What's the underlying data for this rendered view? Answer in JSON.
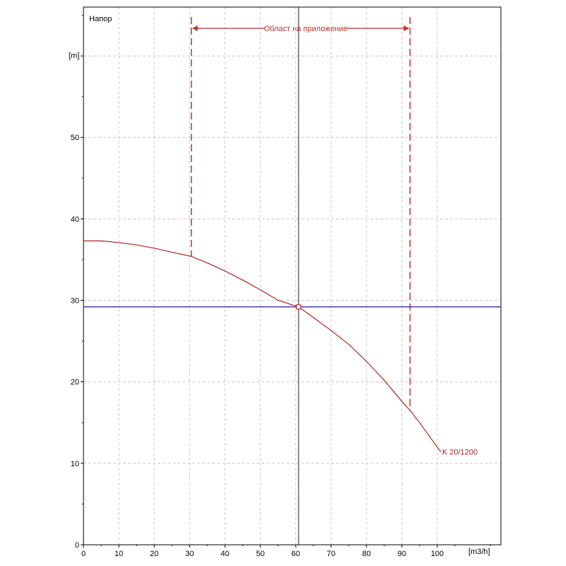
{
  "chart_data": {
    "type": "line",
    "title": "Напор",
    "ylabel": "[m]",
    "xlabel": "[m3/h]",
    "xlim": [
      0,
      118
    ],
    "ylim": [
      0,
      66
    ],
    "x_ticks": [
      0,
      10,
      20,
      30,
      40,
      50,
      60,
      70,
      80,
      90,
      100
    ],
    "y_ticks": [
      0,
      10,
      20,
      30,
      40,
      50
    ],
    "grid": true,
    "series": [
      {
        "name": "K 20/1200",
        "color": "#b22222",
        "x": [
          0,
          5,
          10,
          15,
          20,
          25,
          30.5,
          35,
          40,
          45,
          50,
          55,
          60.8,
          65,
          70,
          75,
          80,
          85,
          90,
          92.3,
          95,
          100,
          101
        ],
        "y": [
          37.3,
          37.3,
          37.1,
          36.8,
          36.4,
          35.9,
          35.4,
          34.6,
          33.6,
          32.5,
          31.3,
          30.0,
          29.2,
          27.9,
          26.3,
          24.6,
          22.5,
          20.2,
          17.6,
          16.5,
          15.0,
          12.0,
          11.4
        ]
      }
    ],
    "operating_point": {
      "x": 60.8,
      "y": 29.2
    },
    "application_range": {
      "label": "Област на приложение",
      "x_min": 30.5,
      "x_max": 92.3
    }
  }
}
